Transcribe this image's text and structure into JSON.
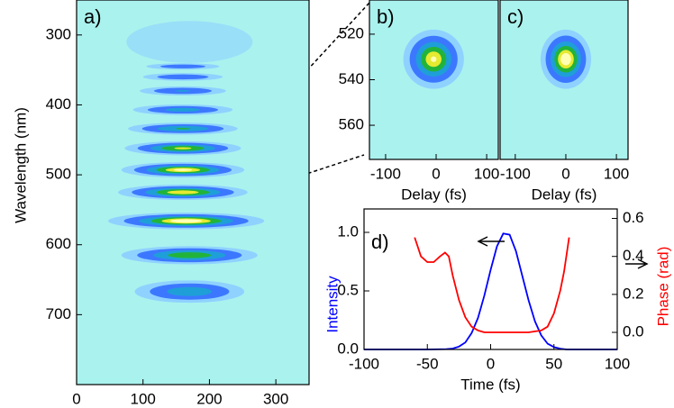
{
  "chart_data": [
    {
      "type": "heatmap",
      "label": "a)",
      "xlabel": "Delay (fs)",
      "ylabel": "Wavelength (nm)",
      "xlim": [
        0,
        350
      ],
      "xticks": [
        0,
        100,
        200,
        300
      ],
      "ylim": [
        800,
        250
      ],
      "yticks": [
        300,
        400,
        500,
        600,
        700
      ],
      "background": "#aaf2ee",
      "colormap": [
        "#8fd2ff",
        "#3c78ff",
        "#1f9fd8",
        "#22b43a",
        "#e6ea30",
        "#ffffb4"
      ],
      "blobs": [
        {
          "x": 170,
          "y": 310,
          "width": 190,
          "height": 60,
          "peak": 0.1
        },
        {
          "x": 160,
          "y": 345,
          "width": 110,
          "height": 9,
          "peak": 0.35
        },
        {
          "x": 160,
          "y": 360,
          "width": 120,
          "height": 11,
          "peak": 0.38
        },
        {
          "x": 160,
          "y": 380,
          "width": 130,
          "height": 13,
          "peak": 0.42
        },
        {
          "x": 160,
          "y": 407,
          "width": 150,
          "height": 15,
          "peak": 0.5
        },
        {
          "x": 160,
          "y": 434,
          "width": 165,
          "height": 17,
          "peak": 0.62
        },
        {
          "x": 160,
          "y": 462,
          "width": 175,
          "height": 20,
          "peak": 0.82
        },
        {
          "x": 160,
          "y": 493,
          "width": 185,
          "height": 22,
          "peak": 0.95
        },
        {
          "x": 160,
          "y": 525,
          "width": 195,
          "height": 22,
          "peak": 0.9
        },
        {
          "x": 165,
          "y": 566,
          "width": 235,
          "height": 24,
          "peak": 1.0
        },
        {
          "x": 170,
          "y": 615,
          "width": 205,
          "height": 26,
          "peak": 0.75
        },
        {
          "x": 170,
          "y": 667,
          "width": 165,
          "height": 32,
          "peak": 0.55
        }
      ]
    },
    {
      "type": "heatmap",
      "label": "b)",
      "xlabel": "Delay (fs)",
      "xlim": [
        -132,
        123
      ],
      "xticks": [
        -100,
        0,
        100
      ],
      "ylim": [
        575,
        505
      ],
      "yticks": [
        520,
        540,
        560
      ],
      "background": "#aaf2ee",
      "colormap": [
        "#8fd2ff",
        "#3c78ff",
        "#1f9fd8",
        "#22b43a",
        "#e6ea30",
        "#ffffb4"
      ],
      "blobs": [
        {
          "x": -5,
          "y": 531,
          "width": 120,
          "height": 26,
          "peak": 0.92
        }
      ]
    },
    {
      "type": "heatmap",
      "label": "c)",
      "xlabel": "Delay (fs)",
      "xlim": [
        -130,
        123
      ],
      "xticks": [
        -100,
        0,
        100
      ],
      "ylim": [
        575,
        505
      ],
      "background": "#aaf2ee",
      "colormap": [
        "#8fd2ff",
        "#3c78ff",
        "#1f9fd8",
        "#22b43a",
        "#e6ea30",
        "#ffffb4"
      ],
      "blobs": [
        {
          "x": 0,
          "y": 531,
          "width": 100,
          "height": 26,
          "peak": 1.0
        }
      ]
    },
    {
      "type": "line",
      "label": "d)",
      "xlabel": "Time (fs)",
      "ylabel": "Intensity",
      "ylabel_color": "#0000ff",
      "y2label": "Phase (rad)",
      "y2label_color": "#ff0000",
      "xlim": [
        -100,
        100
      ],
      "xticks": [
        -100,
        -50,
        0,
        50,
        100
      ],
      "ylim": [
        0,
        1.2
      ],
      "yticks": [
        {
          "value": 0,
          "label": "0.0"
        },
        {
          "value": 0.5,
          "label": "0.5"
        },
        {
          "value": 1,
          "label": "1.0"
        }
      ],
      "y2lim": [
        -0.09,
        0.65
      ],
      "y2ticks": [
        {
          "value": 0,
          "label": "0.0"
        },
        {
          "value": 0.2,
          "label": "0.2"
        },
        {
          "value": 0.4,
          "label": "0.4"
        },
        {
          "value": 0.6,
          "label": "0.6"
        }
      ],
      "series": [
        {
          "color": "#0000ff",
          "x": [
            -100,
            -50,
            -35,
            -30,
            -25,
            -20,
            -15,
            -10,
            -5,
            0,
            5,
            10,
            15,
            20,
            25,
            30,
            35,
            40,
            45,
            50,
            55,
            60,
            100
          ],
          "values": [
            0,
            0,
            0.003,
            0.008,
            0.025,
            0.06,
            0.14,
            0.27,
            0.46,
            0.68,
            0.88,
            0.99,
            0.98,
            0.84,
            0.63,
            0.42,
            0.24,
            0.12,
            0.05,
            0.02,
            0.007,
            0,
            0
          ]
        },
        {
          "color": "#ff0000",
          "axis": "y2",
          "x": [
            -60,
            -55,
            -50,
            -45,
            -40,
            -36,
            -33,
            -30,
            -25,
            -20,
            -15,
            -10,
            -5,
            0,
            10,
            20,
            30,
            40,
            45,
            50,
            55,
            58,
            62
          ],
          "values": [
            0.5,
            0.4,
            0.37,
            0.37,
            0.4,
            0.42,
            0.4,
            0.3,
            0.17,
            0.08,
            0.03,
            0.01,
            0,
            0,
            0,
            0,
            0,
            0.01,
            0.03,
            0.1,
            0.22,
            0.32,
            0.5
          ]
        }
      ]
    }
  ]
}
